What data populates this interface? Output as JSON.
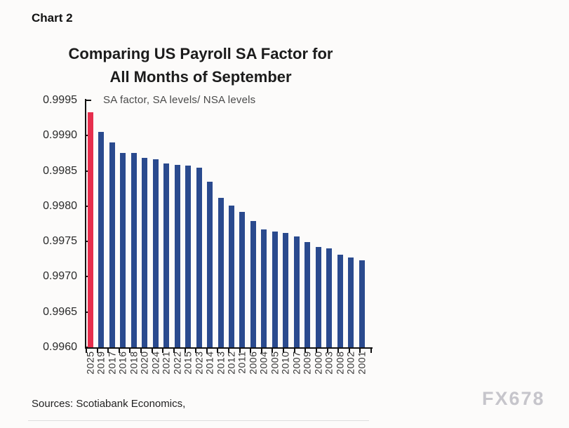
{
  "page": {
    "chart_label": "Chart 2",
    "source_note": "Sources: Scotiabank Economics,",
    "watermark": "FX678"
  },
  "chart_data": {
    "type": "bar",
    "title_line1": "Comparing US Payroll SA Factor for",
    "title_line2": "All Months of September",
    "subtitle": "SA factor, SA levels/ NSA levels",
    "xlabel": "",
    "ylabel": "",
    "categories": [
      "2025",
      "2019",
      "2017",
      "2016",
      "2018",
      "2020",
      "2024",
      "2021",
      "2022",
      "2015",
      "2023",
      "2014",
      "2013",
      "2012",
      "2011",
      "2006",
      "2004",
      "2005",
      "2010",
      "2007",
      "2009",
      "2000",
      "2003",
      "2008",
      "2002",
      "2001"
    ],
    "values": [
      0.99933,
      0.99905,
      0.9989,
      0.99875,
      0.99875,
      0.99868,
      0.99866,
      0.99861,
      0.99859,
      0.99858,
      0.99855,
      0.99835,
      0.99812,
      0.99801,
      0.99792,
      0.99779,
      0.99767,
      0.99764,
      0.99762,
      0.99757,
      0.99749,
      0.99742,
      0.9974,
      0.99731,
      0.99727,
      0.99723
    ],
    "ylim": [
      0.996,
      0.9995
    ],
    "y_ticks": [
      "0.9995",
      "0.9990",
      "0.9985",
      "0.9980",
      "0.9975",
      "0.9970",
      "0.9965",
      "0.9960"
    ],
    "grid": false,
    "legend_position": "none",
    "bar_color": "#2a4a8e",
    "highlight_color": "#e62e4d",
    "highlight_category": "2025"
  }
}
